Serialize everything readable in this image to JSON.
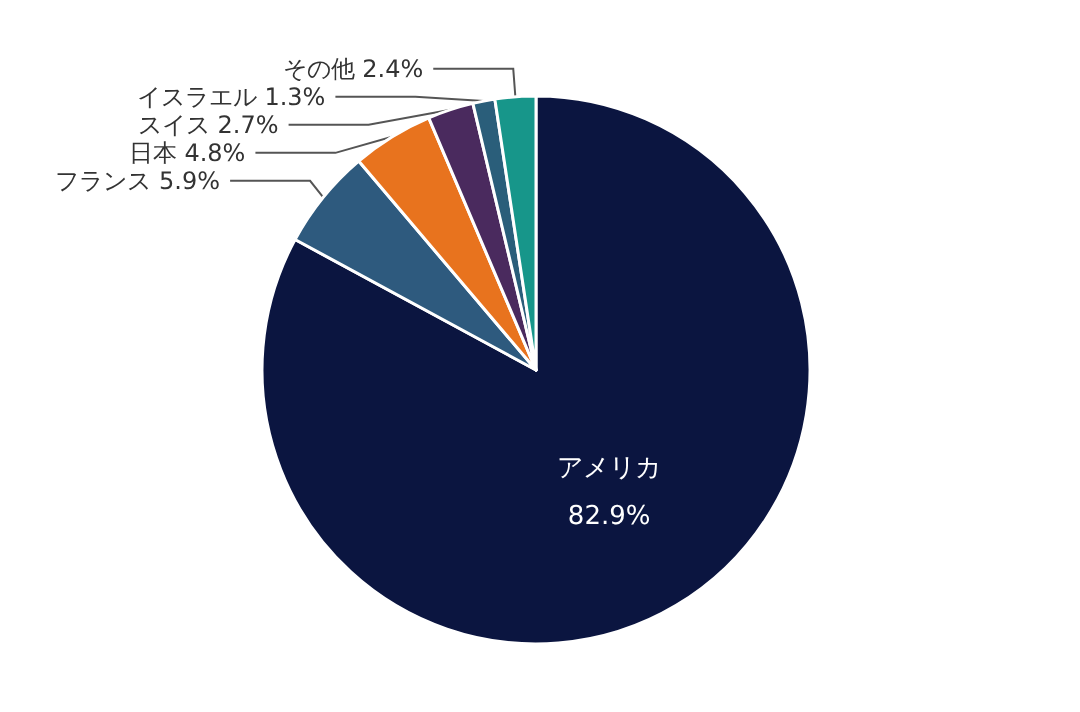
{
  "chart_data": {
    "type": "pie",
    "categories": [
      "アメリカ",
      "フランス",
      "日本",
      "スイス",
      "イスラエル",
      "その他"
    ],
    "values": [
      82.9,
      5.9,
      4.8,
      2.7,
      1.3,
      2.4
    ],
    "value_labels": [
      "82.9%",
      "5.9%",
      "4.8%",
      "2.7%",
      "1.3%",
      "2.4%"
    ],
    "colors": [
      "#0b1540",
      "#2e5a7e",
      "#e8731e",
      "#4a2a5e",
      "#2a5e7a",
      "#17968a"
    ]
  }
}
